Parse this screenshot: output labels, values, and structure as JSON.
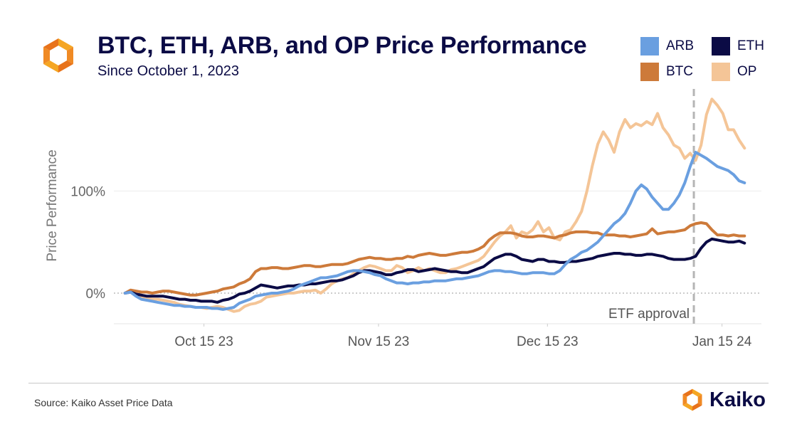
{
  "header": {
    "title": "BTC, ETH, ARB, and OP Price Performance",
    "subtitle": "Since October 1, 2023"
  },
  "legend": [
    {
      "label": "ARB",
      "color": "#6a9fe0"
    },
    {
      "label": "ETH",
      "color": "#0b0b45"
    },
    {
      "label": "BTC",
      "color": "#cd7a3a"
    },
    {
      "label": "OP",
      "color": "#f4c597"
    }
  ],
  "footer": {
    "source": "Source: Kaiko Asset Price Data",
    "brand": "Kaiko"
  },
  "chart_data": {
    "type": "line",
    "title": "BTC, ETH, ARB, and OP Price Performance",
    "subtitle": "Since October 1, 2023",
    "ylabel": "Price Performance",
    "xlabel": "",
    "x_start": "2023-10-01",
    "x_end": "2024-01-19",
    "xlim": [
      "2023-09-29",
      "2024-01-22"
    ],
    "ylim": [
      -30,
      200
    ],
    "y_ticks": [
      {
        "value": 0,
        "label": "0%"
      },
      {
        "value": 100,
        "label": "100%"
      }
    ],
    "x_ticks": [
      {
        "date": "2023-10-15",
        "label": "Oct 15 23"
      },
      {
        "date": "2023-11-15",
        "label": "Nov 15 23"
      },
      {
        "date": "2023-12-15",
        "label": "Dec 15 23"
      },
      {
        "date": "2024-01-15",
        "label": "Jan 15 24"
      }
    ],
    "grid": "horizontal",
    "annotation": {
      "date": "2024-01-10",
      "label": "ETF approval"
    },
    "series": [
      {
        "name": "OP",
        "color": "#f4c597",
        "values": [
          0,
          2,
          -2,
          -4,
          -5,
          -6,
          -6,
          -7,
          -8,
          -9,
          -11,
          -12,
          -13,
          -14,
          -14,
          -15,
          -14,
          -13,
          -14,
          -16,
          -18,
          -17,
          -13,
          -11,
          -10,
          -8,
          -4,
          -3,
          -2,
          -1,
          0,
          0,
          1,
          2,
          2,
          3,
          0,
          4,
          9,
          12,
          14,
          15,
          19,
          22,
          25,
          27,
          26,
          24,
          22,
          22,
          27,
          25,
          20,
          22,
          25,
          22,
          24,
          22,
          20,
          20,
          23,
          24,
          26,
          28,
          30,
          32,
          36,
          43,
          50,
          56,
          60,
          66,
          54,
          60,
          58,
          62,
          70,
          60,
          64,
          54,
          52,
          60,
          62,
          70,
          80,
          100,
          125,
          146,
          158,
          150,
          138,
          158,
          170,
          162,
          166,
          164,
          168,
          165,
          176,
          162,
          155,
          145,
          142,
          132,
          137,
          130,
          145,
          175,
          190,
          184,
          176,
          160,
          160,
          150,
          142
        ]
      },
      {
        "name": "BTC",
        "color": "#cd7a3a",
        "values": [
          0,
          3,
          2,
          1,
          1,
          0,
          1,
          2,
          2,
          1,
          0,
          -1,
          -2,
          -2,
          -1,
          0,
          1,
          2,
          4,
          5,
          6,
          9,
          11,
          14,
          21,
          24,
          24,
          25,
          25,
          24,
          24,
          25,
          26,
          27,
          27,
          26,
          26,
          27,
          28,
          28,
          28,
          29,
          31,
          33,
          34,
          35,
          34,
          34,
          33,
          33,
          34,
          34,
          36,
          35,
          37,
          38,
          39,
          38,
          37,
          37,
          38,
          39,
          40,
          40,
          41,
          43,
          46,
          52,
          56,
          59,
          59,
          59,
          58,
          56,
          55,
          55,
          56,
          56,
          55,
          54,
          56,
          57,
          59,
          60,
          60,
          60,
          59,
          59,
          57,
          57,
          57,
          56,
          56,
          55,
          56,
          57,
          58,
          63,
          58,
          59,
          60,
          60,
          61,
          62,
          66,
          68,
          69,
          68,
          62,
          57,
          57,
          56,
          57,
          56,
          56
        ]
      },
      {
        "name": "ETH",
        "color": "#0b0b45",
        "values": [
          0,
          1,
          -1,
          -2,
          -3,
          -3,
          -3,
          -3,
          -4,
          -5,
          -6,
          -6,
          -7,
          -7,
          -8,
          -8,
          -8,
          -9,
          -7,
          -6,
          -4,
          -1,
          0,
          2,
          5,
          8,
          7,
          6,
          5,
          6,
          7,
          7,
          8,
          8,
          9,
          9,
          10,
          11,
          12,
          12,
          13,
          15,
          17,
          20,
          22,
          22,
          21,
          20,
          18,
          18,
          20,
          21,
          23,
          23,
          21,
          22,
          23,
          24,
          23,
          22,
          21,
          21,
          20,
          20,
          22,
          24,
          26,
          30,
          34,
          36,
          38,
          38,
          36,
          33,
          32,
          31,
          33,
          33,
          31,
          31,
          30,
          30,
          31,
          31,
          32,
          33,
          34,
          36,
          37,
          38,
          39,
          39,
          38,
          38,
          37,
          37,
          38,
          38,
          37,
          36,
          34,
          33,
          33,
          33,
          34,
          36,
          44,
          50,
          53,
          52,
          51,
          50,
          50,
          51,
          49
        ]
      },
      {
        "name": "ARB",
        "color": "#6a9fe0",
        "values": [
          0,
          1,
          -3,
          -6,
          -7,
          -8,
          -9,
          -10,
          -11,
          -12,
          -12,
          -13,
          -13,
          -14,
          -14,
          -14,
          -15,
          -15,
          -16,
          -15,
          -14,
          -10,
          -8,
          -6,
          -3,
          -2,
          -1,
          0,
          0,
          1,
          2,
          4,
          7,
          9,
          11,
          13,
          15,
          15,
          16,
          17,
          19,
          21,
          22,
          22,
          21,
          20,
          18,
          17,
          14,
          12,
          10,
          10,
          9,
          10,
          10,
          11,
          11,
          12,
          12,
          12,
          13,
          14,
          14,
          15,
          16,
          17,
          19,
          21,
          22,
          22,
          21,
          21,
          20,
          19,
          19,
          20,
          20,
          20,
          19,
          19,
          22,
          28,
          33,
          36,
          40,
          42,
          46,
          50,
          56,
          62,
          68,
          72,
          78,
          88,
          100,
          106,
          102,
          94,
          88,
          82,
          82,
          88,
          96,
          108,
          124,
          138,
          135,
          132,
          128,
          124,
          122,
          120,
          116,
          110,
          108
        ]
      }
    ]
  }
}
